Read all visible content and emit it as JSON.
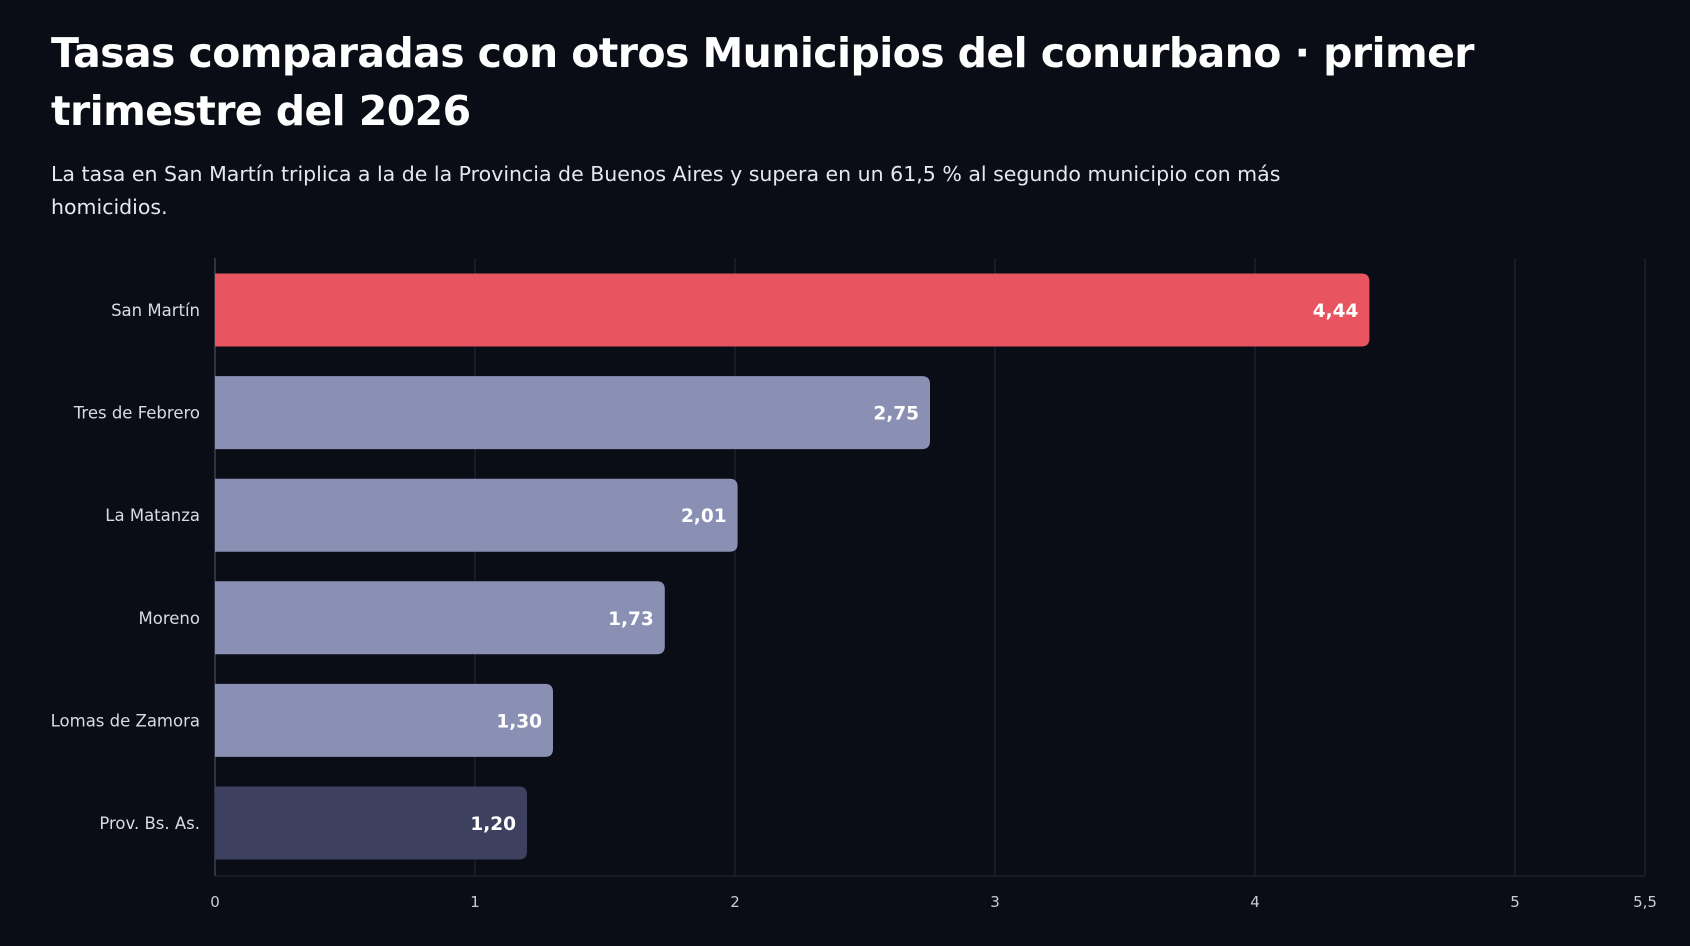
{
  "chart_data": {
    "type": "bar",
    "orientation": "horizontal",
    "title": "Tasas comparadas con otros Municipios del conurbano · primer trimestre del 2026",
    "subtitle": "La tasa en San Martín triplica a la de la Provincia de Buenos Aires y supera en un 61,5 % al segundo municipio con más homicidios.",
    "categories": [
      "San Martín",
      "Tres de Febrero",
      "La Matanza",
      "Moreno",
      "Lomas de Zamora",
      "Prov. Bs. As."
    ],
    "values": [
      4.44,
      2.75,
      2.01,
      1.73,
      1.3,
      1.2
    ],
    "value_labels": [
      "4,44",
      "2,75",
      "2,01",
      "1,73",
      "1,30",
      "1,20"
    ],
    "bar_colors": [
      "#e8545f",
      "#8a90b4",
      "#8a90b4",
      "#8a90b4",
      "#8a90b4",
      "#3d405f"
    ],
    "xlim": [
      0,
      5.5
    ],
    "x_ticks": [
      0,
      1,
      2,
      3,
      4,
      5,
      5.5
    ],
    "x_tick_labels": [
      "0",
      "1",
      "2",
      "3",
      "4",
      "5",
      "5,5"
    ],
    "grid": true,
    "colors": {
      "background": "#0b0d16",
      "gridline": "#252838",
      "axis_line": "#3a3e52"
    }
  }
}
